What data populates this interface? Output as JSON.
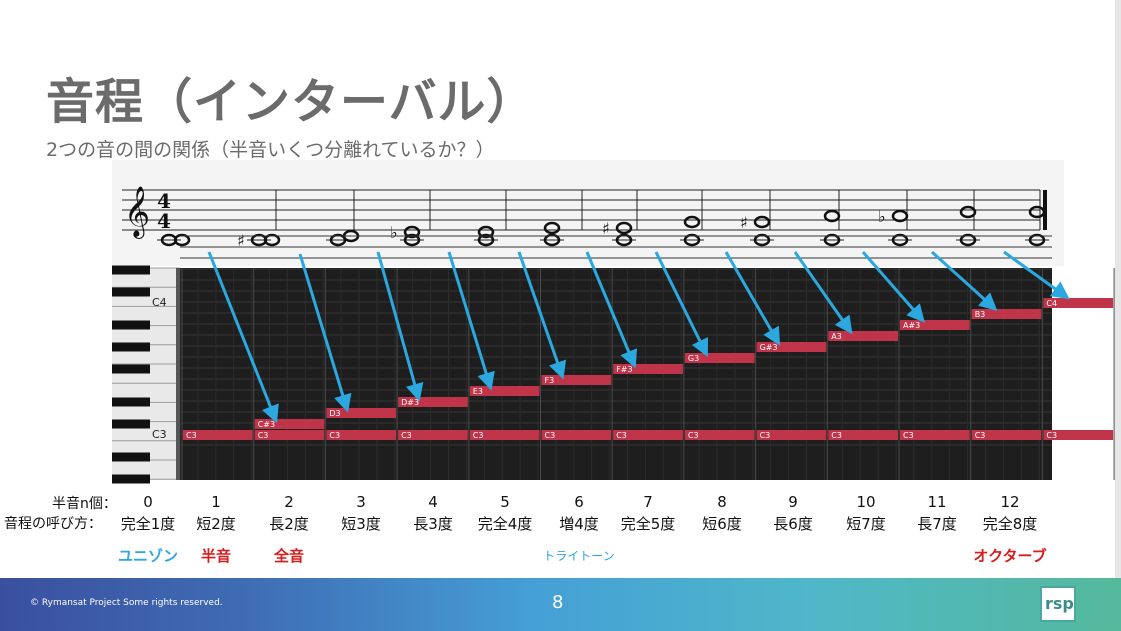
{
  "slide": {
    "title": "音程（インターバル）",
    "subtitle": "2つの音の間の関係（半音いくつ分離れているか？）",
    "page_number": "8",
    "copyright": "© Rymansat Project Some rights reserved.",
    "logo_text": "rsp"
  },
  "row_labels": {
    "semitones": "半音n個：",
    "names": "音程の呼び方："
  },
  "intervals": [
    {
      "n": "0",
      "name": "完全1度",
      "note": "C3"
    },
    {
      "n": "1",
      "name": "短2度",
      "note": "C#3"
    },
    {
      "n": "2",
      "name": "長2度",
      "note": "D3"
    },
    {
      "n": "3",
      "name": "短3度",
      "note": "D#3"
    },
    {
      "n": "4",
      "name": "長3度",
      "note": "E3"
    },
    {
      "n": "5",
      "name": "完全4度",
      "note": "F3"
    },
    {
      "n": "6",
      "name": "増4度",
      "note": "F#3"
    },
    {
      "n": "7",
      "name": "完全5度",
      "note": "G3"
    },
    {
      "n": "8",
      "name": "短6度",
      "note": "G#3"
    },
    {
      "n": "9",
      "name": "長6度",
      "note": "A3"
    },
    {
      "n": "10",
      "name": "短7度",
      "note": "A#3"
    },
    {
      "n": "11",
      "name": "長7度",
      "note": "B3"
    },
    {
      "n": "12",
      "name": "完全8度",
      "note": "C4"
    }
  ],
  "root_note": "C3",
  "key_labels": {
    "c3": "C3",
    "c4": "C4"
  },
  "special_labels": [
    {
      "text": "ユニゾン",
      "color": "#2aa8df"
    },
    {
      "text": "半音",
      "color": "#d81b1b"
    },
    {
      "text": "全音",
      "color": "#d81b1b"
    },
    {
      "text": "トライトーン",
      "color": "#2aa8df"
    },
    {
      "text": "オクターブ",
      "color": "#d81b1b"
    }
  ],
  "colors": {
    "note_bar": "#c0344a",
    "arrow": "#2aa8df",
    "grid_bg": "#1e1e1e"
  }
}
